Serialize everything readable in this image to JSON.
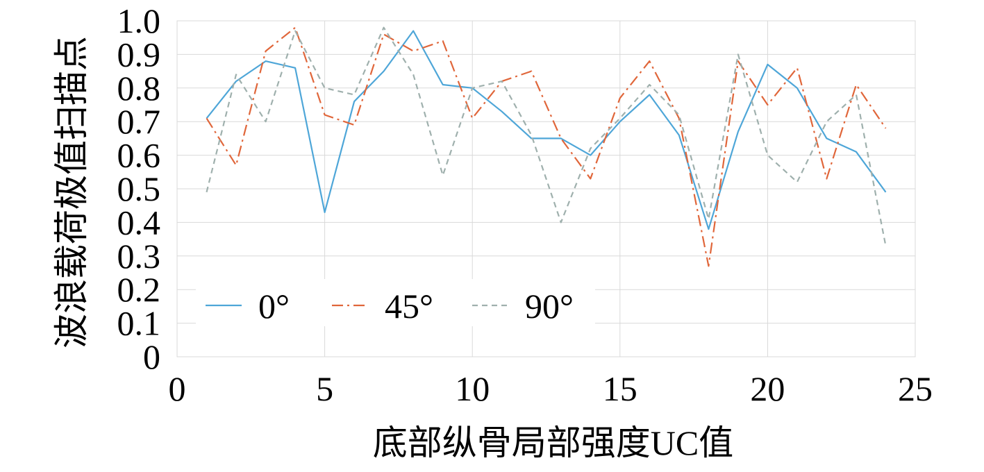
{
  "chart_data": {
    "type": "line",
    "title": "",
    "xlabel": "底部纵骨局部强度UC值",
    "ylabel": "波浪载荷极值扫描点",
    "xlim": [
      0,
      25
    ],
    "ylim": [
      0,
      1.0
    ],
    "x_ticks": [
      0,
      5,
      10,
      15,
      20,
      25
    ],
    "x_tick_labels": [
      "0",
      "5",
      "10",
      "15",
      "20",
      "25"
    ],
    "y_ticks": [
      0,
      0.1,
      0.2,
      0.3,
      0.4,
      0.5,
      0.6,
      0.7,
      0.8,
      0.9,
      1.0
    ],
    "y_tick_labels": [
      "0",
      "0.1",
      "0.2",
      "0.3",
      "0.4",
      "0.5",
      "0.6",
      "0.7",
      "0.8",
      "0.9",
      "1.0"
    ],
    "grid": true,
    "legend_position": "bottom-left",
    "x": [
      1,
      2,
      3,
      4,
      5,
      6,
      7,
      8,
      9,
      10,
      11,
      12,
      13,
      14,
      15,
      16,
      17,
      18,
      19,
      20,
      21,
      22,
      23,
      24
    ],
    "series": [
      {
        "name": "0°",
        "color": "#4ea6d8",
        "dash": "solid",
        "values": [
          0.71,
          0.82,
          0.88,
          0.86,
          0.43,
          0.76,
          0.85,
          0.97,
          0.81,
          0.8,
          0.73,
          0.65,
          0.65,
          0.6,
          0.7,
          0.78,
          0.66,
          0.38,
          0.67,
          0.87,
          0.8,
          0.65,
          0.61,
          0.49
        ]
      },
      {
        "name": "45°",
        "color": "#e0663a",
        "dash": "dash-dot",
        "values": [
          0.71,
          0.57,
          0.91,
          0.98,
          0.72,
          0.69,
          0.96,
          0.91,
          0.94,
          0.71,
          0.82,
          0.85,
          0.65,
          0.53,
          0.77,
          0.88,
          0.71,
          0.27,
          0.88,
          0.75,
          0.86,
          0.53,
          0.81,
          0.68
        ]
      },
      {
        "name": "90°",
        "color": "#9fb0ad",
        "dash": "dashed",
        "values": [
          0.49,
          0.84,
          0.7,
          0.97,
          0.8,
          0.78,
          0.98,
          0.84,
          0.54,
          0.8,
          0.82,
          0.66,
          0.4,
          0.62,
          0.71,
          0.81,
          0.72,
          0.41,
          0.9,
          0.6,
          0.52,
          0.7,
          0.78,
          0.33
        ]
      }
    ]
  }
}
